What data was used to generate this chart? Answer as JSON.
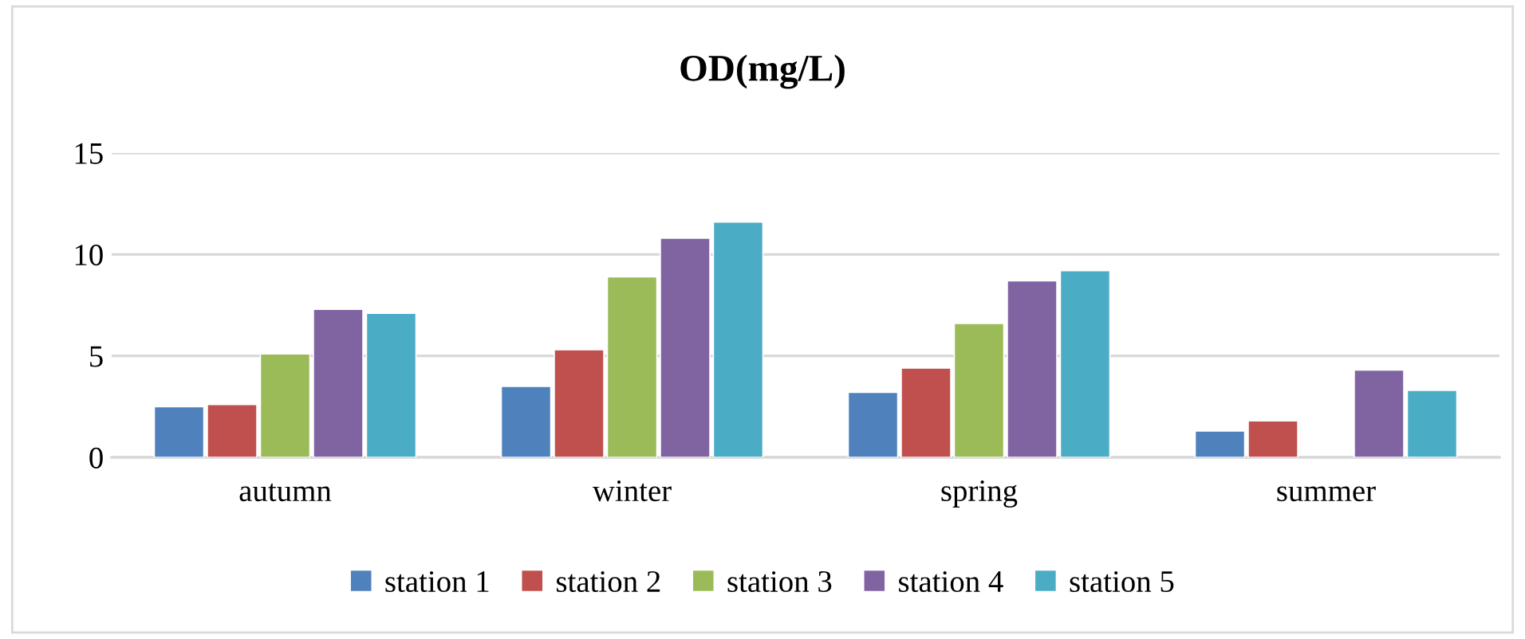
{
  "chart_data": {
    "type": "bar",
    "title": "OD(mg/L)",
    "categories": [
      "autumn",
      "winter",
      "spring",
      "summer"
    ],
    "series": [
      {
        "name": "station 1",
        "color": "#4f81bd",
        "values": [
          2.5,
          3.5,
          3.2,
          1.3
        ]
      },
      {
        "name": "station 2",
        "color": "#c0504d",
        "values": [
          2.6,
          5.3,
          4.4,
          1.8
        ]
      },
      {
        "name": "station 3",
        "color": "#9bbb59",
        "values": [
          5.1,
          8.9,
          6.6,
          null
        ]
      },
      {
        "name": "station 4",
        "color": "#8064a2",
        "values": [
          7.3,
          10.8,
          8.7,
          4.3
        ]
      },
      {
        "name": "station 5",
        "color": "#4bacc6",
        "values": [
          7.1,
          11.6,
          9.2,
          3.3
        ]
      }
    ],
    "ylim": [
      0,
      15
    ],
    "yticks": [
      0,
      5,
      10,
      15
    ],
    "grid": "y",
    "legend": "bottom"
  }
}
